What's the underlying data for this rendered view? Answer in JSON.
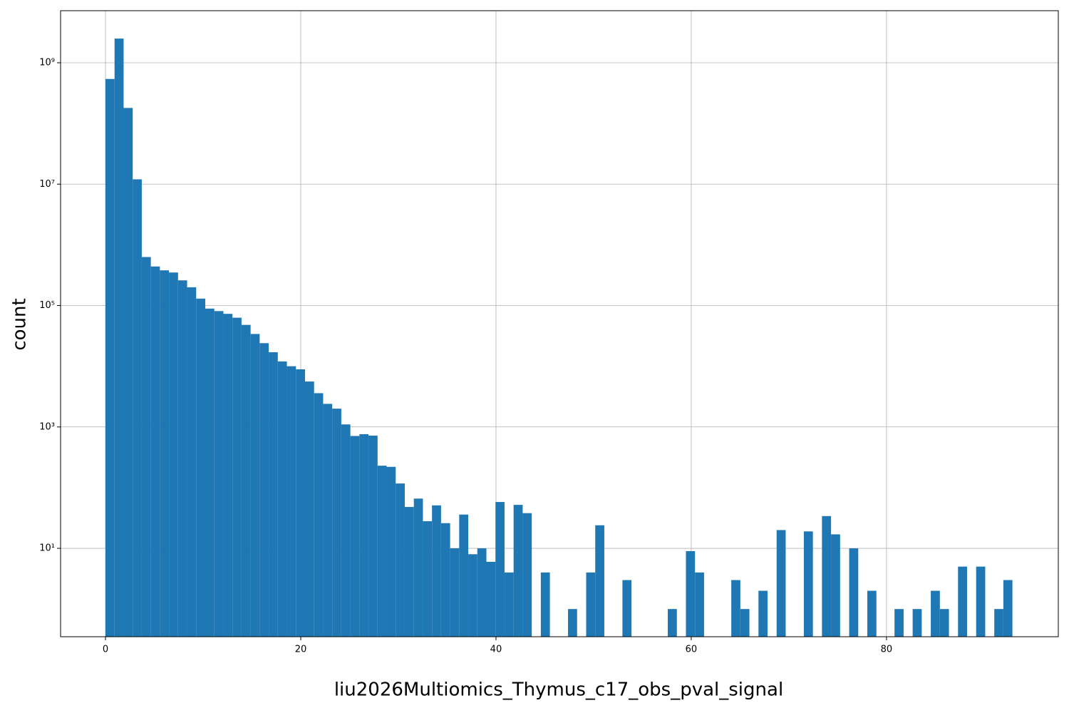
{
  "chart_data": {
    "type": "histogram",
    "xlabel": "liu2026Multiomics_Thymus_c17_obs_pval_signal",
    "ylabel": "count",
    "color": "#1f77b4",
    "log_y": true,
    "grid": true,
    "bins": [
      0,
      0.929,
      1.858,
      2.787,
      3.716,
      4.645,
      5.574,
      6.503,
      7.432,
      8.361,
      9.29,
      10.219,
      11.148,
      12.077,
      13.006,
      13.935,
      14.864,
      15.793,
      16.722,
      17.651,
      18.58,
      19.509,
      20.438,
      21.367,
      22.296,
      23.225,
      24.154,
      25.083,
      26.012,
      26.941,
      27.87,
      28.799,
      29.728,
      30.657,
      31.586,
      32.515,
      33.444,
      34.373,
      35.302,
      36.231,
      37.16,
      38.089,
      39.018,
      39.947,
      40.876,
      41.805,
      42.734,
      43.663,
      44.592,
      45.521,
      46.45,
      47.379,
      48.308,
      49.237,
      50.166,
      51.095,
      52.024,
      52.953,
      53.882,
      54.811,
      55.74,
      56.669,
      57.598,
      58.527,
      59.456,
      60.385,
      61.314,
      62.243,
      63.172,
      64.101,
      65.03,
      65.959,
      66.888,
      67.817,
      68.746,
      69.675,
      70.604,
      71.533,
      72.462,
      73.391,
      74.32,
      75.249,
      76.178,
      77.107,
      78.036,
      78.965,
      79.894,
      80.823,
      81.752,
      82.681,
      83.61,
      84.539,
      85.468,
      86.397,
      87.326,
      88.255,
      89.184,
      90.113,
      91.042,
      91.971,
      92.9
    ],
    "counts": [
      540000000,
      2500000000,
      180000000,
      12000000,
      630000,
      440000,
      380000,
      350000,
      260000,
      200000,
      130000,
      89000,
      81000,
      73000,
      63000,
      48000,
      34000,
      24000,
      17000,
      12000,
      10000,
      8900,
      5600,
      3600,
      2400,
      2000,
      1100,
      710,
      760,
      720,
      230,
      220,
      117,
      48,
      66,
      28,
      51,
      26,
      10,
      36,
      8,
      10,
      6,
      58,
      4,
      52,
      38,
      0,
      4,
      0,
      0,
      1,
      0,
      4,
      24,
      0,
      0,
      3,
      0,
      0,
      0,
      0,
      1,
      0,
      9,
      4,
      0,
      0,
      0,
      3,
      1,
      0,
      2,
      0,
      20,
      0,
      0,
      19,
      0,
      34,
      17,
      0,
      10,
      0,
      2,
      0,
      0,
      1,
      0,
      1,
      0,
      2,
      1,
      0,
      5,
      0,
      5,
      0,
      1,
      3
    ],
    "xlim": [
      -4.6,
      97.6
    ],
    "ylim": [
      0.35,
      7200000000
    ],
    "xticks": [
      0,
      20,
      40,
      60,
      80
    ],
    "yticks": [
      {
        "value": 10,
        "label": "10¹"
      },
      {
        "value": 1000,
        "label": "10³"
      },
      {
        "value": 100000,
        "label": "10⁵"
      },
      {
        "value": 10000000,
        "label": "10⁷"
      },
      {
        "value": 1000000000,
        "label": "10⁹"
      }
    ]
  }
}
